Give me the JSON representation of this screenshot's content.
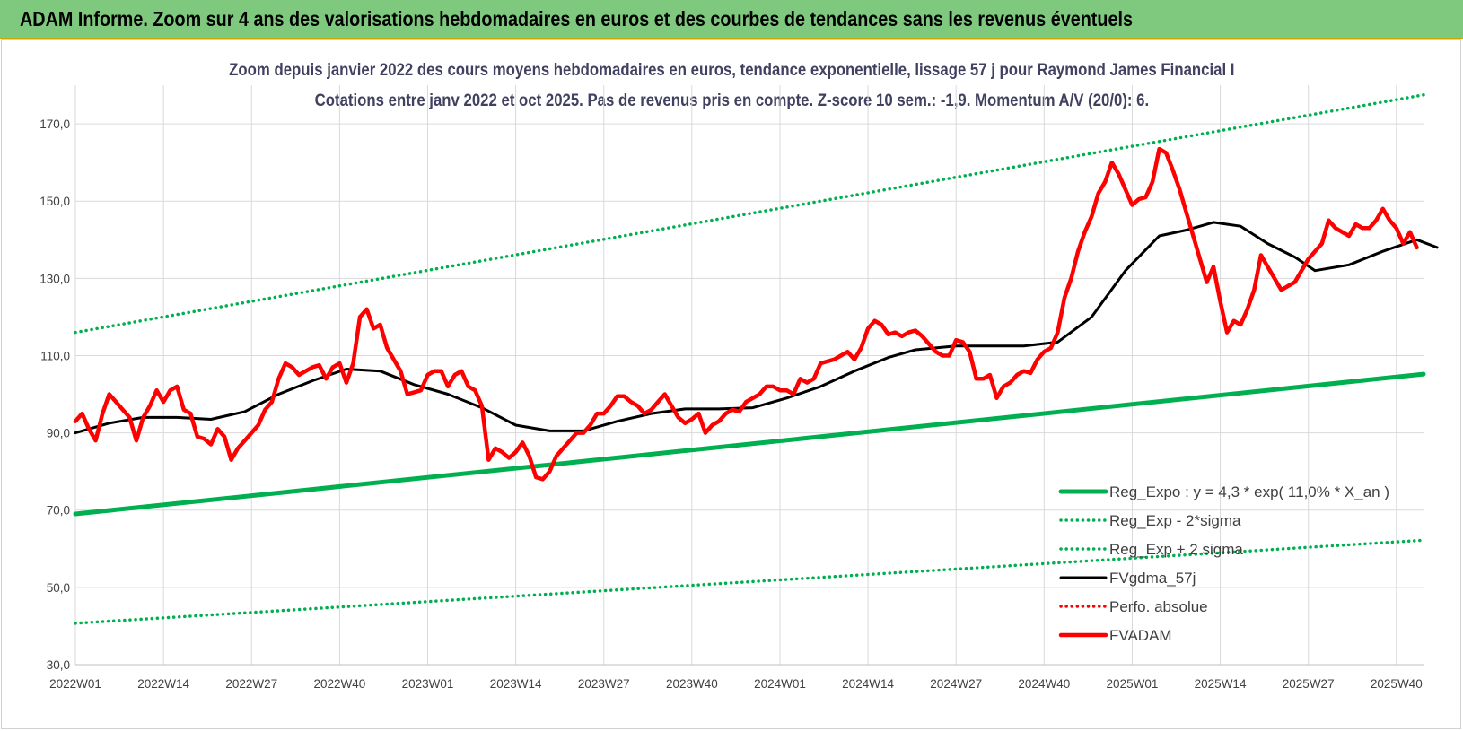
{
  "banner": {
    "title": "ADAM Informe. Zoom sur 4 ans des valorisations hebdomadaires en euros et des courbes de tendances sans les revenus éventuels"
  },
  "chart_data": {
    "type": "line",
    "title": "Zoom depuis janvier 2022 des cours moyens hebdomadaires en euros, tendance exponentielle, lissage 57 j pour Raymond James Financial I",
    "subtitle": "Cotations entre janv 2022 et oct 2025. Pas de revenus pris en compte. Z-score 10 sem.: -1,9. Momentum A/V (20/0): 6.",
    "xlabel": "",
    "ylabel": "",
    "ylim": [
      30,
      180
    ],
    "y_ticks": [
      "30,0",
      "50,0",
      "70,0",
      "90,0",
      "110,0",
      "130,0",
      "150,0",
      "170,0"
    ],
    "x_ticks": [
      "2022W01",
      "2022W14",
      "2022W27",
      "2022W40",
      "2023W01",
      "2023W14",
      "2023W27",
      "2023W40",
      "2024W01",
      "2024W14",
      "2024W27",
      "2024W40",
      "2025W01",
      "2025W14",
      "2025W27",
      "2025W40"
    ],
    "grid": true,
    "legend_position": "bottom-right",
    "week_count": 200,
    "series": [
      {
        "name": "Reg_Expo : y = 4,3 * exp( 11,0% * X_an )",
        "color": "#00b050",
        "style": "solid-thick",
        "points": [
          [
            0,
            69
          ],
          [
            199,
            105.2
          ]
        ]
      },
      {
        "name": "Reg_Exp - 2*sigma",
        "color": "#00b050",
        "style": "dotted",
        "points": [
          [
            0,
            40.7
          ],
          [
            199,
            62.2
          ]
        ]
      },
      {
        "name": "Reg_Exp + 2 sigma",
        "color": "#00b050",
        "style": "dotted",
        "points": [
          [
            0,
            116
          ],
          [
            199,
            177.5
          ]
        ]
      },
      {
        "name": "FVgdma_57j",
        "color": "#000000",
        "style": "solid",
        "points": [
          [
            0,
            90
          ],
          [
            5,
            92.5
          ],
          [
            10,
            94
          ],
          [
            15,
            94
          ],
          [
            20,
            93.5
          ],
          [
            25,
            95.5
          ],
          [
            30,
            100
          ],
          [
            35,
            103.5
          ],
          [
            40,
            106.5
          ],
          [
            45,
            106
          ],
          [
            50,
            102.5
          ],
          [
            55,
            100
          ],
          [
            60,
            96.5
          ],
          [
            65,
            92
          ],
          [
            70,
            90.5
          ],
          [
            75,
            90.5
          ],
          [
            80,
            93
          ],
          [
            85,
            95
          ],
          [
            90,
            96.2
          ],
          [
            95,
            96.2
          ],
          [
            100,
            96.5
          ],
          [
            105,
            99
          ],
          [
            110,
            102
          ],
          [
            115,
            106
          ],
          [
            120,
            109.5
          ],
          [
            124,
            111.5
          ],
          [
            130,
            112.5
          ],
          [
            135,
            112.5
          ],
          [
            140,
            112.5
          ],
          [
            145,
            113.5
          ],
          [
            150,
            120
          ],
          [
            155,
            132
          ],
          [
            160,
            141
          ],
          [
            164,
            142.5
          ],
          [
            168,
            144.5
          ],
          [
            172,
            143.5
          ],
          [
            176,
            139
          ],
          [
            180,
            135.5
          ],
          [
            183,
            132
          ],
          [
            188,
            133.5
          ],
          [
            193,
            137
          ],
          [
            198,
            140
          ],
          [
            201,
            138
          ]
        ]
      },
      {
        "name": "Perfo. absolue",
        "color": "#ff0000",
        "style": "dotted",
        "points": []
      },
      {
        "name": "FVADAM",
        "color": "#ff0000",
        "style": "solid-thick",
        "points": [
          [
            0,
            93
          ],
          [
            1,
            95
          ],
          [
            2,
            91
          ],
          [
            3,
            88
          ],
          [
            4,
            95
          ],
          [
            5,
            100
          ],
          [
            6,
            98
          ],
          [
            7,
            96
          ],
          [
            8,
            94
          ],
          [
            9,
            88
          ],
          [
            10,
            94
          ],
          [
            11,
            97
          ],
          [
            12,
            101
          ],
          [
            13,
            98
          ],
          [
            14,
            101
          ],
          [
            15,
            102
          ],
          [
            16,
            96
          ],
          [
            17,
            95
          ],
          [
            18,
            89
          ],
          [
            19,
            88.5
          ],
          [
            20,
            87
          ],
          [
            21,
            91
          ],
          [
            22,
            89
          ],
          [
            23,
            83
          ],
          [
            24,
            86
          ],
          [
            25,
            88
          ],
          [
            26,
            90
          ],
          [
            27,
            92
          ],
          [
            28,
            96
          ],
          [
            29,
            98
          ],
          [
            30,
            104
          ],
          [
            31,
            108
          ],
          [
            32,
            107
          ],
          [
            33,
            105
          ],
          [
            34,
            106
          ],
          [
            35,
            107
          ],
          [
            36,
            107.5
          ],
          [
            37,
            104
          ],
          [
            38,
            107
          ],
          [
            39,
            108
          ],
          [
            40,
            103
          ],
          [
            41,
            108
          ],
          [
            42,
            120
          ],
          [
            43,
            122
          ],
          [
            44,
            117
          ],
          [
            45,
            118
          ],
          [
            46,
            112
          ],
          [
            47,
            109
          ],
          [
            48,
            106
          ],
          [
            49,
            100
          ],
          [
            50,
            100.5
          ],
          [
            51,
            101
          ],
          [
            52,
            105
          ],
          [
            53,
            106
          ],
          [
            54,
            106
          ],
          [
            55,
            102
          ],
          [
            56,
            105
          ],
          [
            57,
            106
          ],
          [
            58,
            102
          ],
          [
            59,
            101
          ],
          [
            60,
            97
          ],
          [
            61,
            83
          ],
          [
            62,
            86
          ],
          [
            63,
            85
          ],
          [
            64,
            83.5
          ],
          [
            65,
            85
          ],
          [
            66,
            87.5
          ],
          [
            67,
            84
          ],
          [
            68,
            78.5
          ],
          [
            69,
            78
          ],
          [
            70,
            80
          ],
          [
            71,
            84
          ],
          [
            72,
            86
          ],
          [
            73,
            88
          ],
          [
            74,
            90
          ],
          [
            75,
            90
          ],
          [
            76,
            92
          ],
          [
            77,
            95
          ],
          [
            78,
            95
          ],
          [
            79,
            97
          ],
          [
            80,
            99.5
          ],
          [
            81,
            99.5
          ],
          [
            82,
            98
          ],
          [
            83,
            97
          ],
          [
            84,
            95
          ],
          [
            85,
            96
          ],
          [
            86,
            98
          ],
          [
            87,
            100
          ],
          [
            88,
            97
          ],
          [
            89,
            94
          ],
          [
            90,
            92.5
          ],
          [
            91,
            93.5
          ],
          [
            92,
            95
          ],
          [
            93,
            90
          ],
          [
            94,
            92
          ],
          [
            95,
            93
          ],
          [
            96,
            95
          ],
          [
            97,
            96
          ],
          [
            98,
            95.5
          ],
          [
            99,
            98
          ],
          [
            100,
            99
          ],
          [
            101,
            100
          ],
          [
            102,
            102
          ],
          [
            103,
            102
          ],
          [
            104,
            101
          ],
          [
            105,
            101
          ],
          [
            106,
            100
          ],
          [
            107,
            104
          ],
          [
            108,
            103
          ],
          [
            109,
            104
          ],
          [
            110,
            108
          ],
          [
            111,
            108.5
          ],
          [
            112,
            109
          ],
          [
            113,
            110
          ],
          [
            114,
            111
          ],
          [
            115,
            109
          ],
          [
            116,
            112
          ],
          [
            117,
            117
          ],
          [
            118,
            119
          ],
          [
            119,
            118
          ],
          [
            120,
            115.5
          ],
          [
            121,
            116
          ],
          [
            122,
            115
          ],
          [
            123,
            116
          ],
          [
            124,
            116.5
          ],
          [
            125,
            115
          ],
          [
            126,
            113
          ],
          [
            127,
            111
          ],
          [
            128,
            110
          ],
          [
            129,
            110
          ],
          [
            130,
            114
          ],
          [
            131,
            113.5
          ],
          [
            132,
            111
          ],
          [
            133,
            104
          ],
          [
            134,
            104
          ],
          [
            135,
            105
          ],
          [
            136,
            99
          ],
          [
            137,
            102
          ],
          [
            138,
            103
          ],
          [
            139,
            105
          ],
          [
            140,
            106
          ],
          [
            141,
            105.5
          ],
          [
            142,
            109
          ],
          [
            143,
            111
          ],
          [
            144,
            112
          ],
          [
            145,
            116
          ],
          [
            146,
            125
          ],
          [
            147,
            130
          ],
          [
            148,
            137
          ],
          [
            149,
            142
          ],
          [
            150,
            146
          ],
          [
            151,
            152
          ],
          [
            152,
            155
          ],
          [
            153,
            160
          ],
          [
            154,
            157
          ],
          [
            155,
            153
          ],
          [
            156,
            149
          ],
          [
            157,
            150.5
          ],
          [
            158,
            151
          ],
          [
            159,
            155
          ],
          [
            160,
            163.5
          ],
          [
            161,
            162.5
          ],
          [
            162,
            158
          ],
          [
            163,
            153
          ],
          [
            164,
            147
          ],
          [
            165,
            141
          ],
          [
            166,
            135
          ],
          [
            167,
            129
          ],
          [
            168,
            133
          ],
          [
            169,
            124
          ],
          [
            170,
            116
          ],
          [
            171,
            119
          ],
          [
            172,
            118
          ],
          [
            173,
            122
          ],
          [
            174,
            127
          ],
          [
            175,
            136
          ],
          [
            176,
            133
          ],
          [
            177,
            130
          ],
          [
            178,
            127
          ],
          [
            179,
            128
          ],
          [
            180,
            129
          ],
          [
            181,
            132
          ],
          [
            182,
            135
          ],
          [
            183,
            137
          ],
          [
            184,
            139
          ],
          [
            185,
            145
          ],
          [
            186,
            143
          ],
          [
            187,
            142
          ],
          [
            188,
            141
          ],
          [
            189,
            144
          ],
          [
            190,
            143
          ],
          [
            191,
            143
          ],
          [
            192,
            145
          ],
          [
            193,
            148
          ],
          [
            194,
            145
          ],
          [
            195,
            143
          ],
          [
            196,
            139
          ],
          [
            197,
            142
          ],
          [
            198,
            138
          ]
        ]
      }
    ]
  }
}
